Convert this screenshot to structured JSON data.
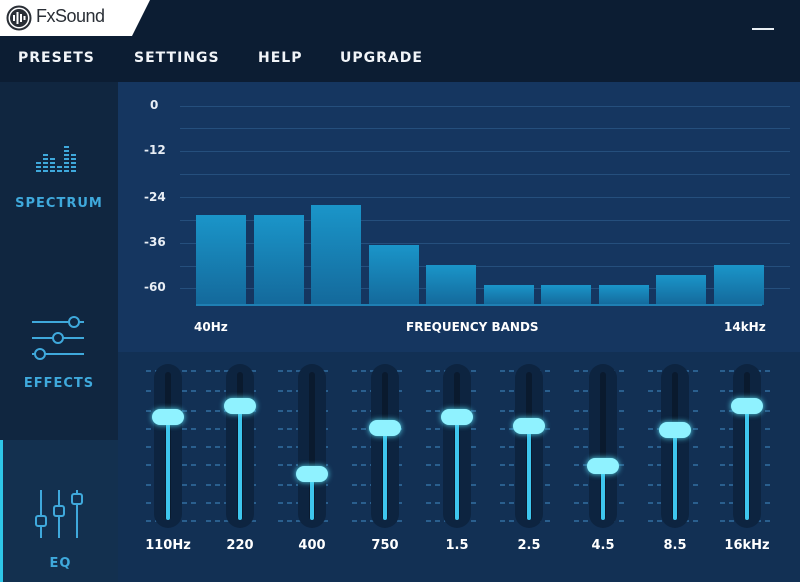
{
  "app": {
    "name": "FxSound"
  },
  "menu": [
    "PRESETS",
    "SETTINGS",
    "HELP",
    "UPGRADE"
  ],
  "sidebar": {
    "items": [
      {
        "label": "SPECTRUM",
        "icon": "spectrum-icon"
      },
      {
        "label": "EFFECTS",
        "icon": "effects-sliders-icon"
      },
      {
        "label": "EQ",
        "icon": "eq-icon"
      }
    ]
  },
  "spectrum": {
    "y_ticks": [
      "0",
      "-12",
      "-24",
      "-36",
      "-60"
    ],
    "x_start": "40Hz",
    "x_title": "FREQUENCY BANDS",
    "x_end": "14kHz",
    "bar_levels": [
      0.45,
      0.45,
      0.5,
      0.3,
      0.2,
      0.1,
      0.1,
      0.1,
      0.15,
      0.2
    ]
  },
  "eq": {
    "bands": [
      {
        "label": "110Hz",
        "level": 0.72
      },
      {
        "label": "220",
        "level": 0.8
      },
      {
        "label": "400",
        "level": 0.29
      },
      {
        "label": "750",
        "level": 0.64
      },
      {
        "label": "1.5",
        "level": 0.72
      },
      {
        "label": "2.5",
        "level": 0.65
      },
      {
        "label": "4.5",
        "level": 0.35
      },
      {
        "label": "8.5",
        "level": 0.62
      },
      {
        "label": "16kHz",
        "level": 0.8
      }
    ]
  },
  "colors": {
    "accent": "#2ec6e8",
    "bar": "#1a95c9",
    "thumb": "#8ff2ff",
    "sidebar_label": "#3fa9dc"
  }
}
